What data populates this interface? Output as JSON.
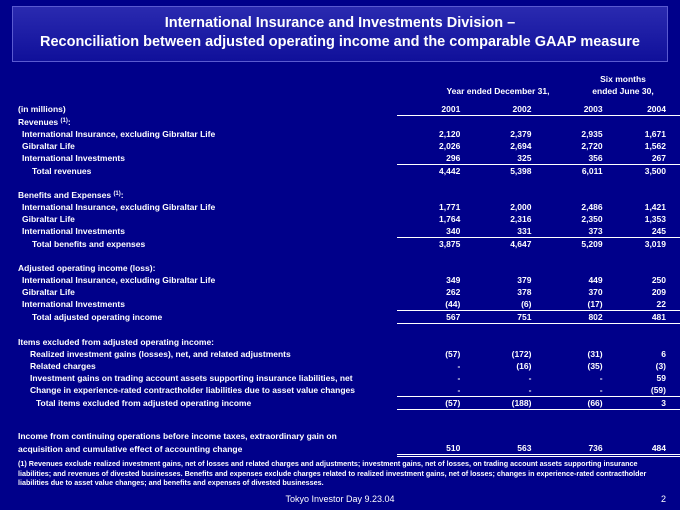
{
  "title": {
    "line1": "International Insurance and Investments Division –",
    "line2": "Reconciliation between adjusted operating income and the comparable GAAP measure"
  },
  "headers": {
    "units": "(in millions)",
    "year_group": "Year ended December 31,",
    "six_months_line1": "Six months",
    "six_months_line2": "ended June 30,",
    "columns": [
      "2001",
      "2002",
      "2003",
      "2004"
    ]
  },
  "sections": {
    "revenues": {
      "label": "Revenues",
      "sup": "(1)",
      "rows": [
        {
          "label": "International Insurance, excluding Gibraltar Life",
          "values": [
            "2,120",
            "2,379",
            "2,935",
            "1,671"
          ]
        },
        {
          "label": "Gibraltar Life",
          "values": [
            "2,026",
            "2,694",
            "2,720",
            "1,562"
          ]
        },
        {
          "label": "International Investments",
          "values": [
            "296",
            "325",
            "356",
            "267"
          ]
        }
      ],
      "total": {
        "label": "Total revenues",
        "values": [
          "4,442",
          "5,398",
          "6,011",
          "3,500"
        ]
      }
    },
    "benefits": {
      "label": "Benefits and Expenses",
      "sup": "(1)",
      "rows": [
        {
          "label": "International Insurance, excluding Gibraltar Life",
          "values": [
            "1,771",
            "2,000",
            "2,486",
            "1,421"
          ]
        },
        {
          "label": "Gibraltar Life",
          "values": [
            "1,764",
            "2,316",
            "2,350",
            "1,353"
          ]
        },
        {
          "label": "International Investments",
          "values": [
            "340",
            "331",
            "373",
            "245"
          ]
        }
      ],
      "total": {
        "label": "Total benefits and expenses",
        "values": [
          "3,875",
          "4,647",
          "5,209",
          "3,019"
        ]
      }
    },
    "adjusted": {
      "label": "Adjusted operating income (loss):",
      "rows": [
        {
          "label": "International Insurance, excluding Gibraltar Life",
          "values": [
            "349",
            "379",
            "449",
            "250"
          ]
        },
        {
          "label": "Gibraltar Life",
          "values": [
            "262",
            "378",
            "370",
            "209"
          ]
        },
        {
          "label": "International Investments",
          "values": [
            "(44)",
            "(6)",
            "(17)",
            "22"
          ]
        }
      ],
      "total": {
        "label": "Total adjusted operating income",
        "values": [
          "567",
          "751",
          "802",
          "481"
        ]
      }
    },
    "excluded": {
      "label": "Items excluded from adjusted operating income:",
      "rows": [
        {
          "label": "Realized investment gains (losses), net, and related adjustments",
          "values": [
            "(57)",
            "(172)",
            "(31)",
            "6"
          ]
        },
        {
          "label": "Related charges",
          "values": [
            "-",
            "(16)",
            "(35)",
            "(3)"
          ]
        },
        {
          "label": "Investment gains on trading account assets supporting insurance liabilities, net",
          "values": [
            "-",
            "-",
            "-",
            "59"
          ]
        },
        {
          "label": "Change in experience-rated contractholder liabilities due to asset value changes",
          "values": [
            "-",
            "-",
            "-",
            "(59)"
          ]
        }
      ],
      "total": {
        "label": "Total items excluded from adjusted operating income",
        "values": [
          "(57)",
          "(188)",
          "(66)",
          "3"
        ]
      }
    },
    "income": {
      "line1": "Income from continuing operations before income taxes, extraordinary gain on",
      "line2": "acquisition and cumulative effect of accounting change",
      "values": [
        "510",
        "563",
        "736",
        "484"
      ]
    }
  },
  "footnote": "(1) Revenues exclude realized investment gains, net of losses and related charges and adjustments; investment gains, net of losses, on trading account assets supporting insurance liabilities; and revenues of divested businesses. Benefits and expenses exclude charges related to realized investment gains, net of losses; changes in experience-rated contractholder liabilities due to asset value changes; and benefits and expenses of divested businesses.",
  "footer": {
    "event": "Tokyo Investor Day 9.23.04",
    "page": "2"
  }
}
